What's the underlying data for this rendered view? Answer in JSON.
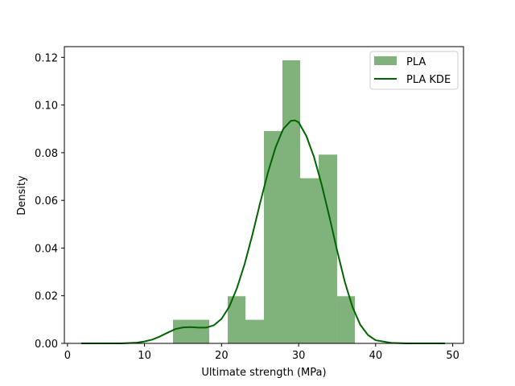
{
  "chart_data": {
    "type": "bar",
    "xlabel": "Ultimate strength (MPa)",
    "ylabel": "Density",
    "xlim": [
      -0.4,
      51.4
    ],
    "ylim": [
      0,
      0.1245
    ],
    "xticks": [
      0,
      10,
      20,
      30,
      40,
      50
    ],
    "yticks": [
      0.0,
      0.02,
      0.04,
      0.06,
      0.08,
      0.1,
      0.12
    ],
    "xtick_labels": [
      "0",
      "10",
      "20",
      "30",
      "40",
      "50"
    ],
    "ytick_labels": [
      "0.00",
      "0.02",
      "0.04",
      "0.06",
      "0.08",
      "0.10",
      "0.12"
    ],
    "legend_position": "top-right",
    "grid": false,
    "histogram": {
      "name": "PLA",
      "color": "#80b27c",
      "bins": [
        {
          "x0": 13.7,
          "x1": 16.1,
          "density": 0.0099
        },
        {
          "x0": 16.1,
          "x1": 18.4,
          "density": 0.0099
        },
        {
          "x0": 18.4,
          "x1": 20.8,
          "density": 0.0
        },
        {
          "x0": 20.8,
          "x1": 23.1,
          "density": 0.0198
        },
        {
          "x0": 23.1,
          "x1": 25.5,
          "density": 0.0099
        },
        {
          "x0": 25.5,
          "x1": 27.9,
          "density": 0.0891
        },
        {
          "x0": 27.9,
          "x1": 30.2,
          "density": 0.1188
        },
        {
          "x0": 30.2,
          "x1": 32.6,
          "density": 0.0693
        },
        {
          "x0": 32.6,
          "x1": 35.0,
          "density": 0.0792
        },
        {
          "x0": 35.0,
          "x1": 37.3,
          "density": 0.0198
        }
      ]
    },
    "kde": {
      "name": "PLA KDE",
      "color": "#006400",
      "x": [
        1.8,
        5,
        7,
        9,
        10,
        11,
        12,
        13,
        14,
        15,
        16,
        17,
        18,
        19,
        20,
        21,
        22,
        23,
        24,
        25,
        26,
        27,
        28,
        29,
        29.5,
        30,
        31,
        32,
        33,
        34,
        35,
        36,
        37,
        38,
        39,
        40,
        42,
        44,
        46,
        49
      ],
      "y": [
        0.0,
        0.0,
        0.0,
        0.0003,
        0.0008,
        0.0016,
        0.0029,
        0.0045,
        0.006,
        0.0067,
        0.0068,
        0.0066,
        0.0066,
        0.0076,
        0.0103,
        0.0154,
        0.0232,
        0.0334,
        0.0455,
        0.0588,
        0.0715,
        0.0822,
        0.0899,
        0.0934,
        0.0936,
        0.0928,
        0.087,
        0.0782,
        0.0665,
        0.053,
        0.0389,
        0.0258,
        0.0152,
        0.0078,
        0.0035,
        0.0013,
        0.0002,
        0.0,
        0.0,
        0.0
      ]
    }
  }
}
